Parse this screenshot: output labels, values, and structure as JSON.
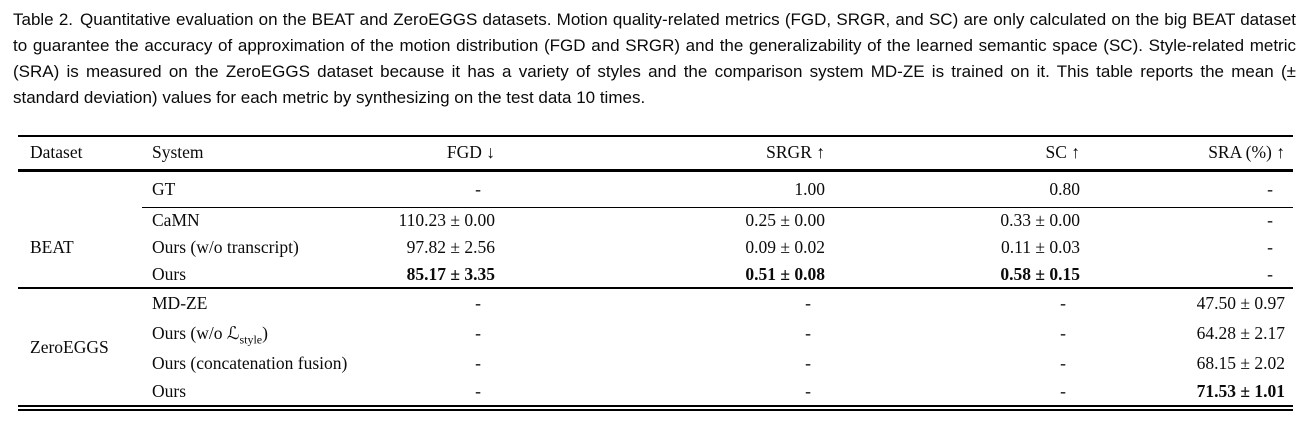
{
  "caption": {
    "label": "Table 2.",
    "text": "Quantitative evaluation on the BEAT and ZeroEGGS datasets. Motion quality-related metrics (FGD, SRGR, and SC) are only calculated on the big BEAT dataset to guarantee the accuracy of approximation of the motion distribution (FGD and SRGR) and the generalizability of the learned semantic space (SC). Style-related metric (SRA) is measured on the ZeroEGGS dataset because it has a variety of styles and the comparison system MD-ZE is trained on it. This table reports the mean (± standard deviation) values for each metric by synthesizing on the test data 10 times."
  },
  "table": {
    "columns": [
      {
        "key": "dataset",
        "label": "Dataset"
      },
      {
        "key": "system",
        "label": "System"
      },
      {
        "key": "fgd",
        "label": "FGD ↓"
      },
      {
        "key": "srgr",
        "label": "SRGR ↑"
      },
      {
        "key": "sc",
        "label": "SC ↑"
      },
      {
        "key": "sra",
        "label": "SRA (%) ↑"
      }
    ],
    "sections": [
      {
        "dataset_label": "BEAT",
        "label_start_row": 1,
        "rows": [
          {
            "system": "GT",
            "values": [
              "-",
              "1.00",
              "0.80",
              "-"
            ],
            "bold": [],
            "rule_below": true
          },
          {
            "system": "CaMN",
            "values": [
              "110.23 ± 0.00",
              "0.25 ± 0.00",
              "0.33 ± 0.00",
              "-"
            ],
            "bold": []
          },
          {
            "system": "Ours (w/o transcript)",
            "values": [
              "97.82 ± 2.56",
              "0.09 ± 0.02",
              "0.11 ± 0.03",
              "-"
            ],
            "bold": []
          },
          {
            "system": "Ours",
            "values": [
              "85.17 ± 3.35",
              "0.51 ± 0.08",
              "0.58 ± 0.15",
              "-"
            ],
            "bold": [
              0,
              1,
              2
            ]
          }
        ]
      },
      {
        "dataset_label": "ZeroEGGS",
        "label_start_row": 0,
        "rows": [
          {
            "system": "MD-ZE",
            "values": [
              "-",
              "-",
              "-",
              "47.50 ± 0.97"
            ],
            "bold": []
          },
          {
            "system": {
              "pre": "Ours (w/o ",
              "cal": "ℒ",
              "sub": "style",
              "post": ")"
            },
            "values": [
              "-",
              "-",
              "-",
              "64.28 ± 2.17"
            ],
            "bold": []
          },
          {
            "system": "Ours (concatenation fusion)",
            "values": [
              "-",
              "-",
              "-",
              "68.15 ± 2.02"
            ],
            "bold": []
          },
          {
            "system": "Ours",
            "values": [
              "-",
              "-",
              "-",
              "71.53 ± 1.01"
            ],
            "bold": [
              3
            ]
          }
        ]
      }
    ]
  }
}
